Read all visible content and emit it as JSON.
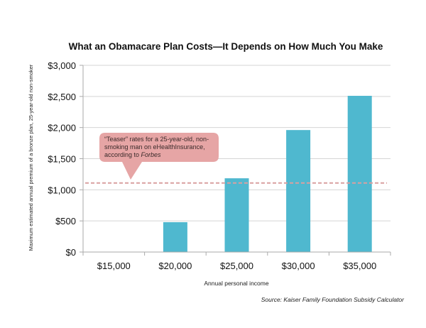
{
  "chart_data": {
    "type": "bar",
    "title": "What an Obamacare Plan Costs—It Depends on How Much You Make",
    "xlabel": "Annual personal income",
    "ylabel": "Maximum estimated annual premium of a bronze plan, 25-year-old non-smoker",
    "categories": [
      "$15,000",
      "$20,000",
      "$25,000",
      "$30,000",
      "$35,000"
    ],
    "values": [
      0,
      480,
      1185,
      1960,
      2510
    ],
    "ylim": [
      0,
      3000
    ],
    "yticks": [
      0,
      500,
      1000,
      1500,
      2000,
      2500,
      3000
    ],
    "ytick_labels": [
      "$0",
      "$500",
      "$1,000",
      "$1,500",
      "$2,000",
      "$2,500",
      "$3,000"
    ],
    "grid": true,
    "bar_color": "#4fb8cf",
    "reference_line": {
      "value": 1110,
      "style": "dashed",
      "color": "#d9a0a0",
      "annotation_lines": [
        "“Teaser” rates for a 25-year-old, non-",
        "smoking man on eHealthInsurance,",
        "according to "
      ],
      "annotation_italic": "Forbes",
      "annotation_color": "#e6a5a5"
    },
    "source": "Source: Kaiser Family Foundation Subsidy Calculator"
  }
}
